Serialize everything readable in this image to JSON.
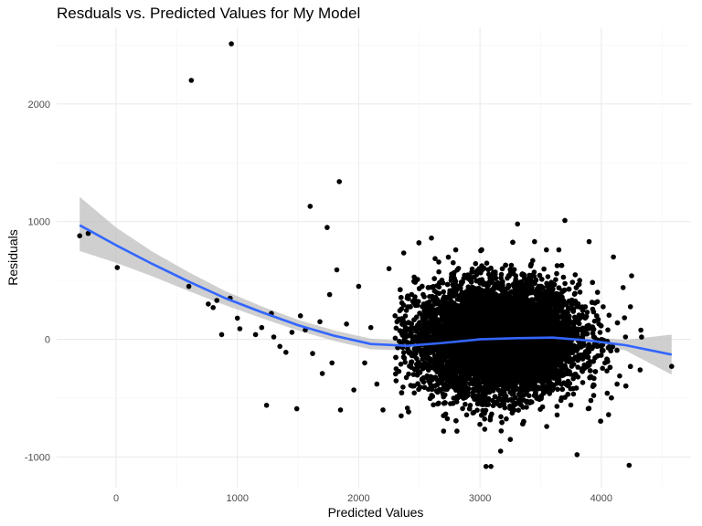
{
  "chart_data": {
    "type": "scatter",
    "title": "Resduals vs. Predicted Values for My Model",
    "xlabel": "Predicted Values",
    "ylabel": "Residuals",
    "xlim": [
      -490,
      4740
    ],
    "ylim": [
      -1260,
      2650
    ],
    "x_ticks": [
      0,
      1000,
      2000,
      3000,
      4000
    ],
    "y_ticks": [
      -1000,
      0,
      1000,
      2000
    ],
    "grid": true,
    "legend": "none",
    "point_color": "#000000",
    "smooth_color": "#3366ff",
    "band_color": "#bfbfbf",
    "cluster": {
      "center_x": 3150,
      "center_y": 0,
      "sd_x": 330,
      "sd_y": 230,
      "count": 9000
    },
    "points": [
      [
        -300,
        880
      ],
      [
        -230,
        900
      ],
      [
        10,
        610
      ],
      [
        620,
        2200
      ],
      [
        950,
        2510
      ],
      [
        600,
        450
      ],
      [
        760,
        300
      ],
      [
        800,
        270
      ],
      [
        830,
        330
      ],
      [
        870,
        40
      ],
      [
        940,
        350
      ],
      [
        1000,
        180
      ],
      [
        1020,
        90
      ],
      [
        1150,
        40
      ],
      [
        1200,
        100
      ],
      [
        1240,
        -560
      ],
      [
        1280,
        220
      ],
      [
        1300,
        20
      ],
      [
        1350,
        -60
      ],
      [
        1400,
        -110
      ],
      [
        1450,
        60
      ],
      [
        1490,
        -590
      ],
      [
        1520,
        200
      ],
      [
        1560,
        80
      ],
      [
        1600,
        1130
      ],
      [
        1620,
        -120
      ],
      [
        1680,
        150
      ],
      [
        1700,
        -290
      ],
      [
        1740,
        950
      ],
      [
        1760,
        380
      ],
      [
        1780,
        -200
      ],
      [
        1820,
        590
      ],
      [
        1840,
        1340
      ],
      [
        1850,
        -600
      ],
      [
        1900,
        130
      ],
      [
        1960,
        -430
      ],
      [
        2000,
        450
      ],
      [
        2050,
        -200
      ],
      [
        2100,
        100
      ],
      [
        2150,
        -380
      ],
      [
        2200,
        -600
      ],
      [
        2250,
        600
      ],
      [
        2300,
        200
      ],
      [
        2350,
        -650
      ],
      [
        2400,
        350
      ],
      [
        3050,
        -1080
      ],
      [
        3090,
        -1080
      ],
      [
        3170,
        -950
      ],
      [
        3310,
        980
      ],
      [
        3700,
        1010
      ],
      [
        3800,
        -980
      ],
      [
        3900,
        830
      ],
      [
        4060,
        -640
      ],
      [
        4100,
        700
      ],
      [
        4180,
        440
      ],
      [
        4230,
        -1070
      ],
      [
        4250,
        540
      ],
      [
        4320,
        -260
      ],
      [
        4580,
        -230
      ],
      [
        3980,
        130
      ],
      [
        4030,
        -200
      ],
      [
        4130,
        -380
      ],
      [
        4200,
        20
      ],
      [
        2600,
        860
      ],
      [
        2700,
        -780
      ],
      [
        3450,
        830
      ],
      [
        3550,
        -740
      ],
      [
        3650,
        760
      ],
      [
        2800,
        760
      ],
      [
        3250,
        -850
      ]
    ],
    "smooth_x": [
      -300,
      0,
      300,
      600,
      900,
      1200,
      1500,
      1800,
      2100,
      2400,
      2700,
      3000,
      3300,
      3600,
      3900,
      4200,
      4580
    ],
    "smooth_y": [
      970,
      800,
      640,
      490,
      350,
      230,
      120,
      30,
      -40,
      -55,
      -30,
      0,
      10,
      15,
      -10,
      -50,
      -130
    ],
    "band_upper": [
      1210,
      950,
      745,
      570,
      410,
      280,
      165,
      75,
      5,
      -15,
      0,
      15,
      25,
      35,
      20,
      -5,
      40
    ],
    "band_lower": [
      750,
      650,
      535,
      410,
      290,
      180,
      75,
      -15,
      -85,
      -95,
      -60,
      -15,
      -5,
      -5,
      -40,
      -95,
      -300
    ]
  }
}
